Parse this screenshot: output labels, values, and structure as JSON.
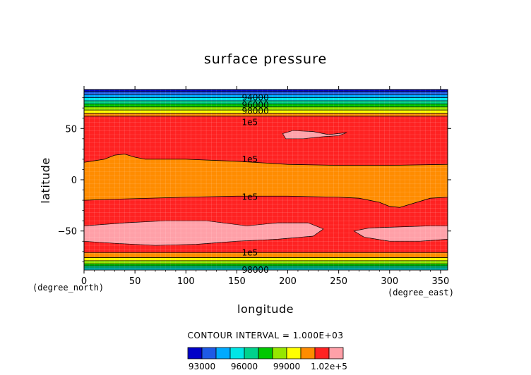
{
  "chart_data": {
    "type": "contour",
    "title": "surface pressure",
    "xlabel": "longitude",
    "ylabel": "latitude",
    "x_unit": "(degree_east)",
    "y_unit": "(degree_north)",
    "xlim": [
      0,
      357
    ],
    "ylim": [
      -88,
      88
    ],
    "x_ticks": [
      0,
      50,
      100,
      150,
      200,
      250,
      300,
      350
    ],
    "y_ticks": [
      -50,
      0,
      50
    ],
    "contour_interval_text": "CONTOUR INTERVAL = 1.000E+03",
    "contour_labels": [
      {
        "text": "94000",
        "lon": 130,
        "lat": 80
      },
      {
        "text": "96000",
        "lon": 130,
        "lat": 73
      },
      {
        "text": "98000",
        "lon": 130,
        "lat": 67
      },
      {
        "text": "1e5",
        "lon": 130,
        "lat": 56
      },
      {
        "text": "1e5",
        "lon": 130,
        "lat": 20
      },
      {
        "text": "1e5",
        "lon": 130,
        "lat": -17
      },
      {
        "text": "1e5",
        "lon": 130,
        "lat": -71
      },
      {
        "text": "98000",
        "lon": 130,
        "lat": -88
      }
    ],
    "colorbar": {
      "levels": [
        92000,
        93000,
        94000,
        95000,
        96000,
        97000,
        98000,
        99000,
        100000,
        101000,
        102000
      ],
      "colors": [
        "#0000c8",
        "#1e5ae6",
        "#00aaff",
        "#00e6e6",
        "#00d28c",
        "#00c800",
        "#96e600",
        "#ffff00",
        "#ff8c00",
        "#ff2222",
        "#ffa0a8"
      ],
      "tick_labels": [
        "93000",
        "96000",
        "99000",
        "1.02e+5"
      ]
    },
    "north_band_lat": [
      89,
      86,
      83,
      80,
      77,
      74,
      71,
      68,
      65,
      62
    ],
    "south_band_lat": [
      -71,
      -76,
      -79,
      -82,
      -84,
      -86,
      -88
    ],
    "red_orange_north": {
      "lon": [
        0,
        20,
        30,
        40,
        50,
        60,
        100,
        150,
        200,
        250,
        300,
        357
      ],
      "lat": [
        17,
        20,
        24,
        25,
        22,
        20,
        20,
        18,
        15,
        14,
        14,
        15
      ]
    },
    "red_orange_south": {
      "lon": [
        0,
        30,
        100,
        150,
        200,
        250,
        270,
        290,
        300,
        310,
        320,
        340,
        357
      ],
      "lat": [
        -20,
        -19,
        -17,
        -16,
        -16,
        -17,
        -18,
        -22,
        -26,
        -27,
        -24,
        -18,
        -17
      ]
    },
    "pink_region_south_west": {
      "lon": [
        0,
        40,
        80,
        120,
        160,
        190,
        220,
        235,
        225,
        190,
        150,
        110,
        70,
        30,
        0
      ],
      "lat": [
        -45,
        -42,
        -40,
        -40,
        -45,
        -42,
        -42,
        -48,
        -55,
        -58,
        -60,
        -63,
        -64,
        -62,
        -60
      ]
    },
    "pink_region_south_east": {
      "lon": [
        265,
        280,
        310,
        340,
        357,
        357,
        330,
        300,
        275,
        265
      ],
      "lat": [
        -50,
        -47,
        -46,
        -45,
        -45,
        -58,
        -60,
        -60,
        -56,
        -50
      ]
    },
    "pink_region_north": {
      "lon": [
        195,
        205,
        225,
        240,
        258,
        250,
        235,
        215,
        198,
        195
      ],
      "lat": [
        45,
        48,
        47,
        44,
        46,
        43,
        42,
        40,
        40,
        45
      ]
    }
  }
}
